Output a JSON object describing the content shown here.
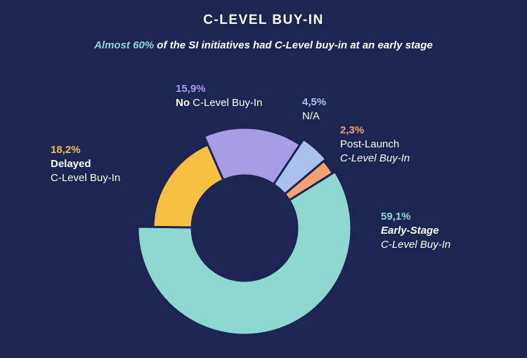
{
  "title": "C-LEVEL BUY-IN",
  "subtitle": {
    "highlight": "Almost 60%",
    "rest": " of the SI initiatives had C-Level buy-in at an early stage"
  },
  "colors": {
    "background": "#1d2552",
    "highlight": "#8fd8d2",
    "outline": "#1d2552"
  },
  "chart_data": {
    "type": "pie",
    "subtype": "donut",
    "title": "C-LEVEL BUY-IN",
    "slices": [
      {
        "pct_label": "59,1%",
        "value": 59.1,
        "line1": "Early-Stage",
        "line2": "C-Level Buy-In",
        "color": "#8fd8d2"
      },
      {
        "pct_label": "18,2%",
        "value": 18.2,
        "line1": "Delayed",
        "line2": "C-Level Buy-In",
        "color": "#f6c042"
      },
      {
        "pct_label": "15,9%",
        "value": 15.9,
        "line1_bold": "No",
        "line1_rest": " C-Level Buy-In",
        "color": "#a99ce6"
      },
      {
        "pct_label": "4,5%",
        "value": 4.5,
        "line1": "N/A",
        "color": "#a9c1ec"
      },
      {
        "pct_label": "2,3%",
        "value": 2.3,
        "line1": "Post-Launch",
        "line2": "C-Level Buy-In",
        "color": "#f4a274"
      }
    ]
  }
}
